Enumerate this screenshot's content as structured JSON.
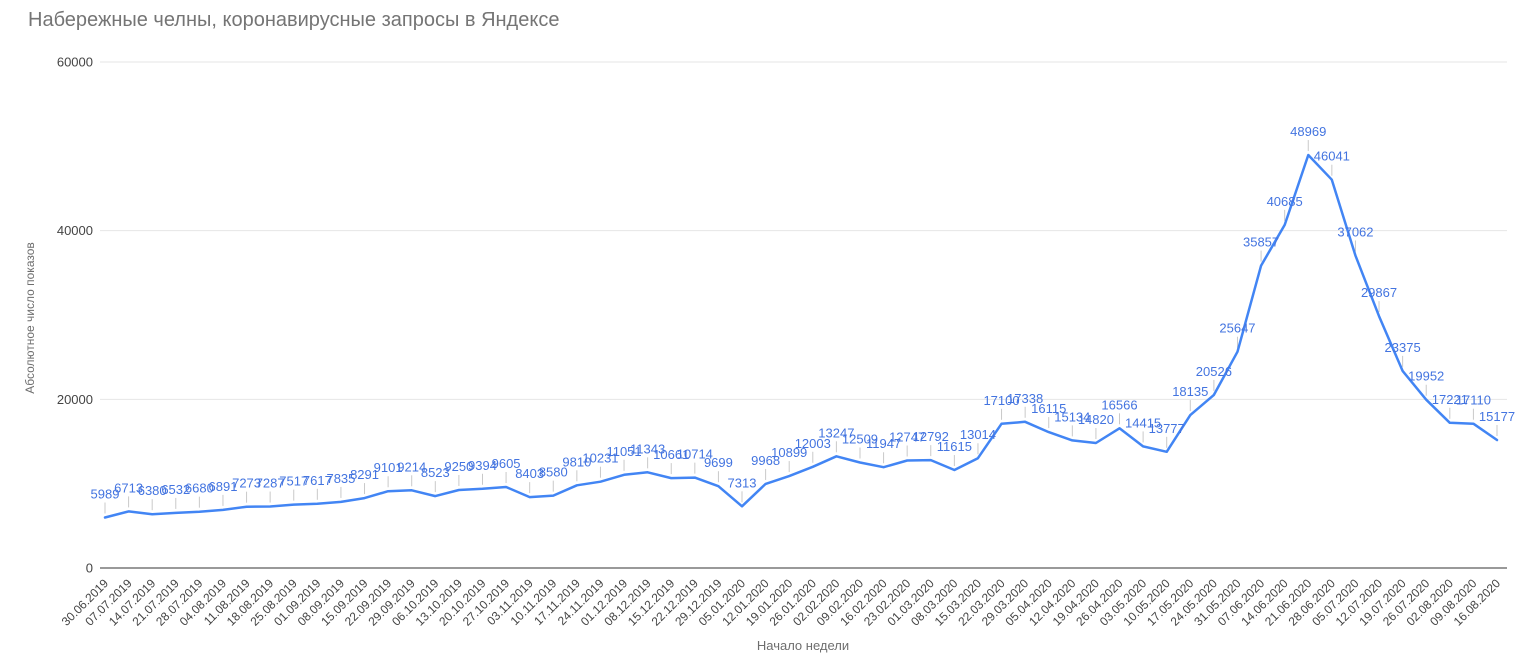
{
  "page": {
    "title": "Набережные челны, коронавирусные запросы в Яндексе"
  },
  "chart_data": {
    "type": "line",
    "title": "Набережные челны, коронавирусные запросы в Яндексе",
    "xlabel": "Начало недели",
    "ylabel": "Абсолютное число показов",
    "ylim": [
      0,
      60000
    ],
    "yticks": [
      0,
      20000,
      40000,
      60000
    ],
    "grid": true,
    "legend": "none",
    "series_name": "Абсолютное число показов",
    "series_color": "#4285f4",
    "annotation_color": "#4374e0",
    "annotation_stem_color": "#c9c9c9",
    "gridline_color": "#e6e6e6",
    "baseline_color": "#333333",
    "tick_label_color": "#444444",
    "categories": [
      "30.06.2019",
      "07.07.2019",
      "14.07.2019",
      "21.07.2019",
      "28.07.2019",
      "04.08.2019",
      "11.08.2019",
      "18.08.2019",
      "25.08.2019",
      "01.09.2019",
      "08.09.2019",
      "15.09.2019",
      "22.09.2019",
      "29.09.2019",
      "06.10.2019",
      "13.10.2019",
      "20.10.2019",
      "27.10.2019",
      "03.11.2019",
      "10.11.2019",
      "17.11.2019",
      "24.11.2019",
      "01.12.2019",
      "08.12.2019",
      "15.12.2019",
      "22.12.2019",
      "29.12.2019",
      "05.01.2020",
      "12.01.2020",
      "19.01.2020",
      "26.01.2020",
      "02.02.2020",
      "09.02.2020",
      "16.02.2020",
      "23.02.2020",
      "01.03.2020",
      "08.03.2020",
      "15.03.2020",
      "22.03.2020",
      "29.03.2020",
      "05.04.2020",
      "12.04.2020",
      "19.04.2020",
      "26.04.2020",
      "03.05.2020",
      "10.05.2020",
      "17.05.2020",
      "24.05.2020",
      "31.05.2020",
      "07.06.2020",
      "14.06.2020",
      "21.06.2020",
      "28.06.2020",
      "05.07.2020",
      "12.07.2020",
      "19.07.2020",
      "26.07.2020",
      "02.08.2020",
      "09.08.2020",
      "16.08.2020"
    ],
    "values": [
      5989,
      6713,
      6380,
      6532,
      6680,
      6891,
      7273,
      7287,
      7517,
      7617,
      7835,
      8291,
      9101,
      9214,
      8523,
      9250,
      9394,
      9605,
      8403,
      8580,
      9810,
      10231,
      11051,
      11343,
      10661,
      10714,
      9699,
      7313,
      9968,
      10899,
      12003,
      13247,
      12509,
      11947,
      12747,
      12792,
      11615,
      13014,
      17100,
      17338,
      16115,
      15134,
      14820,
      16566,
      14415,
      13777,
      18135,
      20526,
      25647,
      35857,
      40685,
      48969,
      46041,
      37062,
      29867,
      23375,
      19952,
      17221,
      17110,
      15177
    ]
  }
}
